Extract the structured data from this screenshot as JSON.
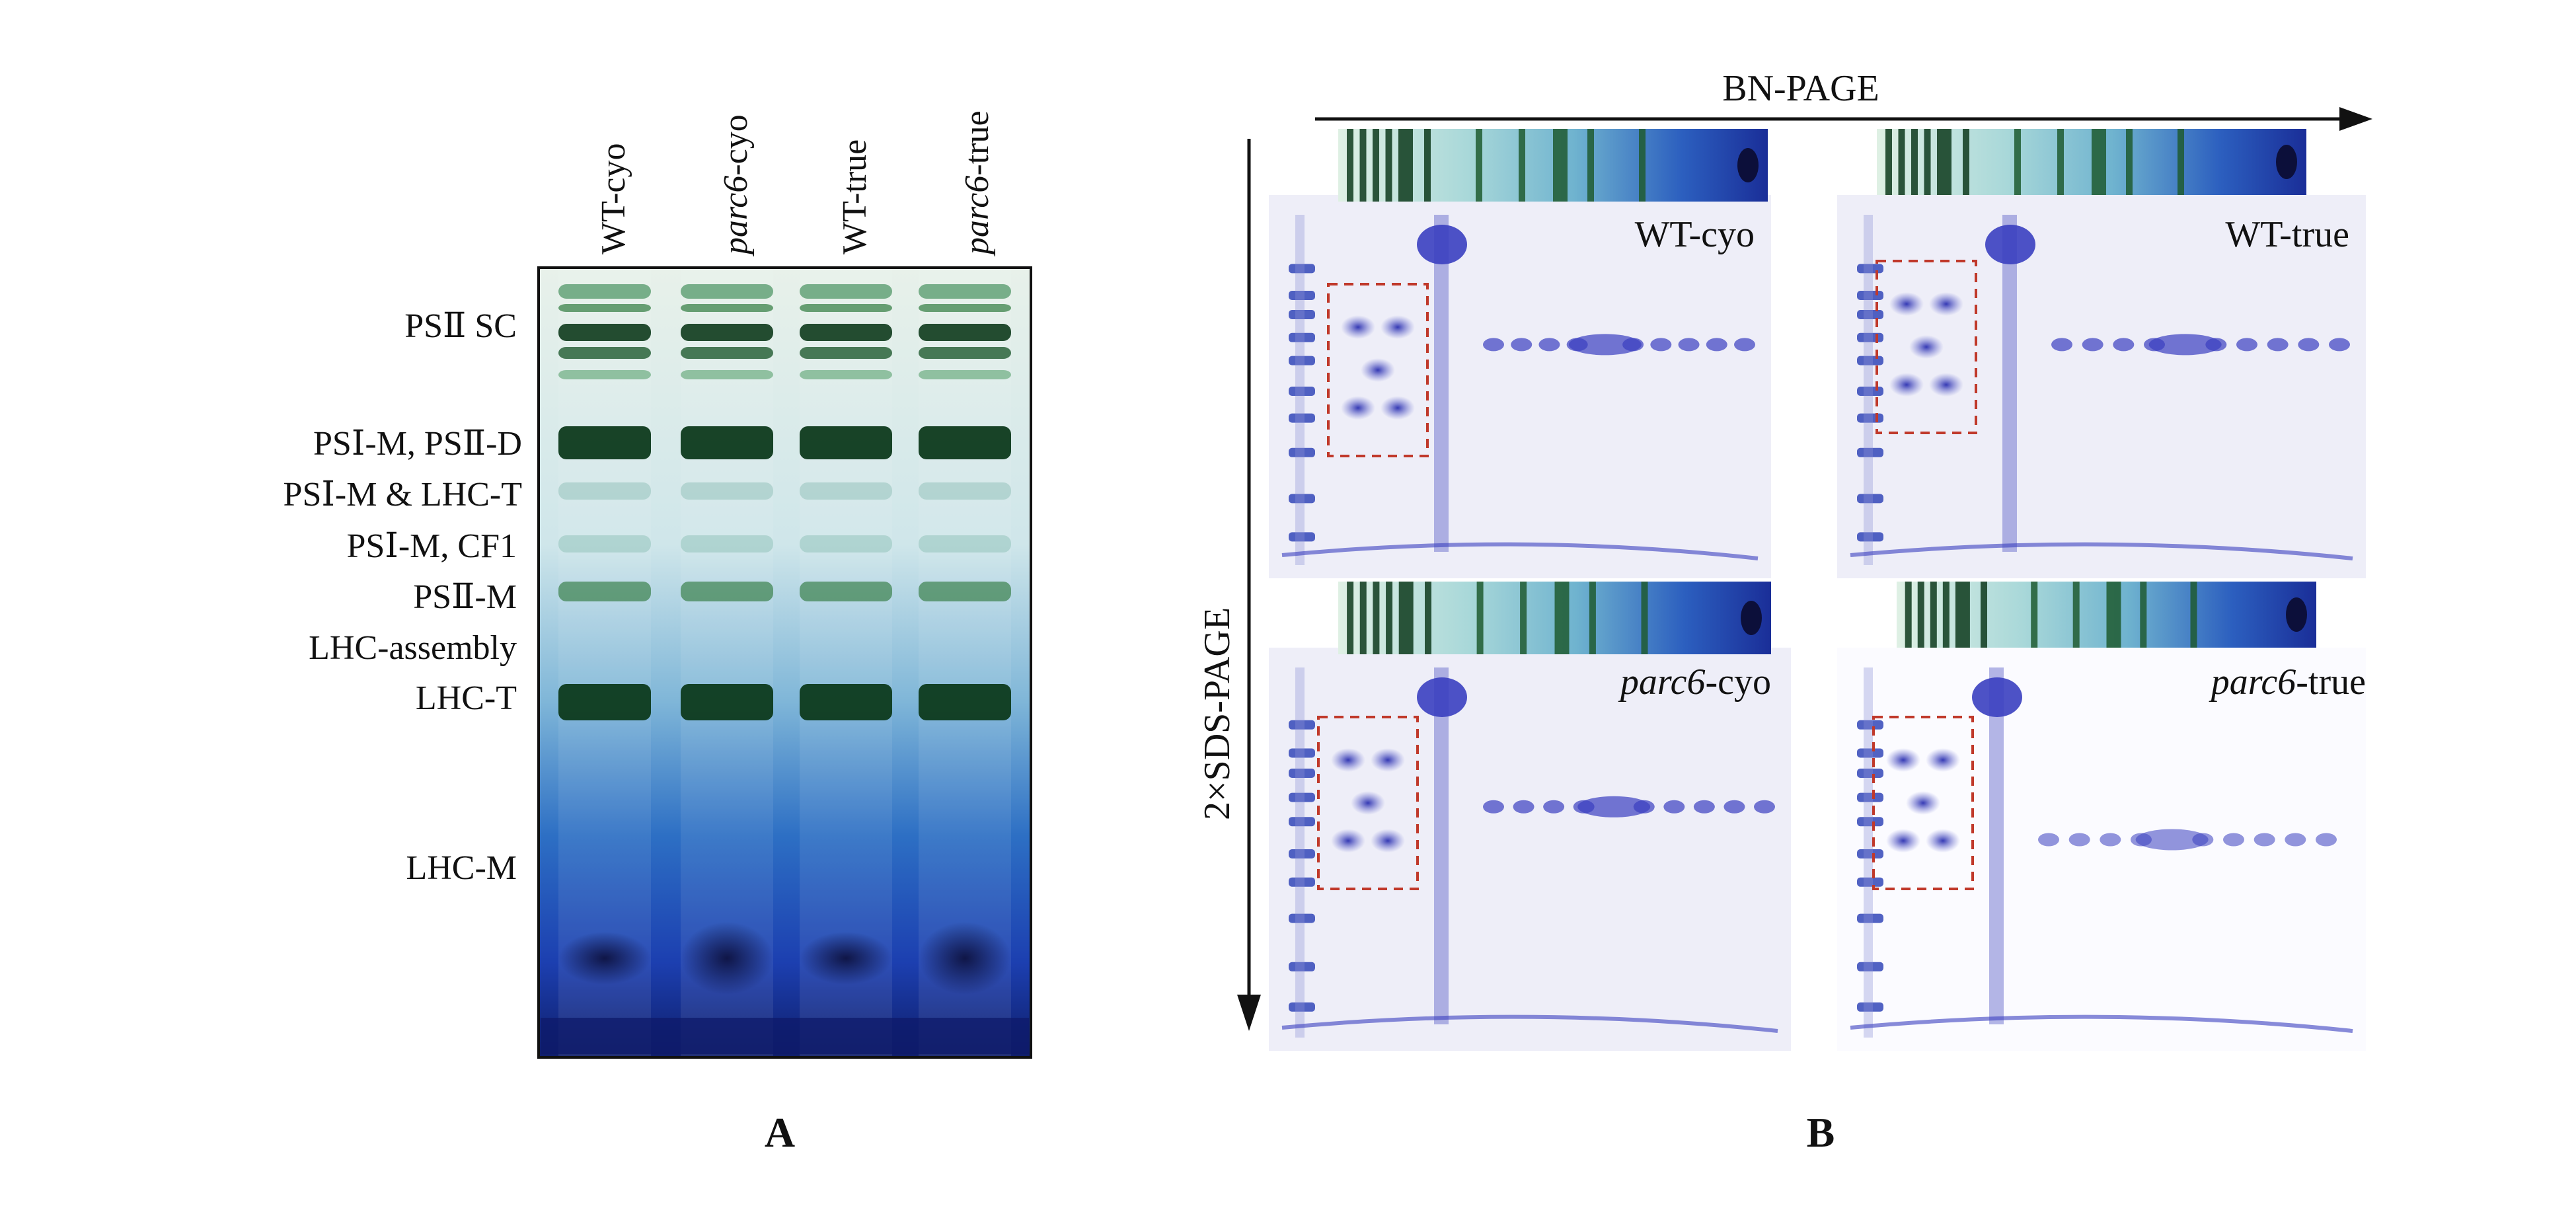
{
  "panel_a": {
    "label": "A",
    "lanes": [
      {
        "prefix": "",
        "italic": "",
        "suffix": "WT-cyo"
      },
      {
        "prefix": "",
        "italic": "parc6",
        "suffix": "-cyo"
      },
      {
        "prefix": "",
        "italic": "",
        "suffix": "WT-true"
      },
      {
        "prefix": "",
        "italic": "parc6",
        "suffix": "-true"
      }
    ],
    "band_labels": [
      "PSⅡ SC",
      "PSⅠ-M, PSⅡ-D",
      "PSⅠ-M & LHC-T",
      "PSⅠ-M, CF1",
      "PSⅡ-M",
      "LHC-assembly",
      "LHC-T",
      "LHC-M"
    ]
  },
  "panel_b": {
    "label": "B",
    "x_axis_label": "BN-PAGE",
    "y_axis_label": "2×SDS-PAGE",
    "gels": [
      {
        "italic": "",
        "suffix": "WT-cyo"
      },
      {
        "italic": "",
        "suffix": "WT-true"
      },
      {
        "italic": "parc6",
        "suffix": "-cyo"
      },
      {
        "italic": "parc6",
        "suffix": "-true"
      }
    ]
  },
  "colors": {
    "band_dark_green": "#0d3a1c",
    "band_green": "#2f7a3f",
    "gel_blue": "#1e3fb0",
    "spot_blue": "#3a3fc0",
    "dashed_box": "#c0392b",
    "marker_blue": "#3346b8"
  }
}
